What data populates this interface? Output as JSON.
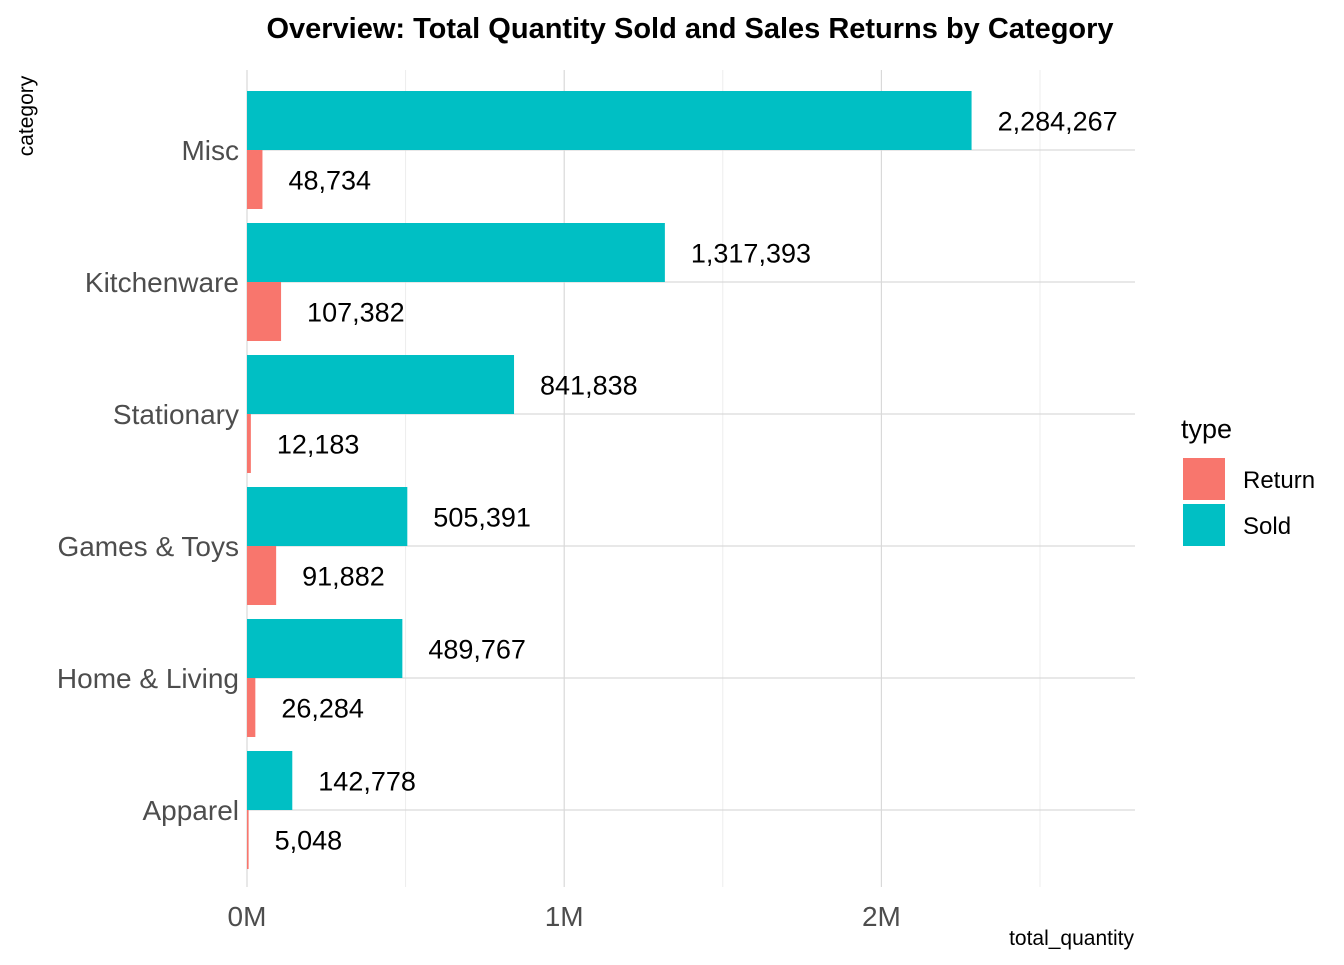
{
  "chart_data": {
    "type": "bar",
    "orientation": "horizontal",
    "title": "Overview: Total Quantity Sold and Sales Returns by Category",
    "xlabel": "total_quantity",
    "ylabel": "category",
    "categories": [
      "Misc",
      "Kitchenware",
      "Stationary",
      "Games & Toys",
      "Home & Living",
      "Apparel"
    ],
    "series": [
      {
        "name": "Sold",
        "color": "#00BFC4",
        "values": [
          2284267,
          1317393,
          841838,
          505391,
          489767,
          142778
        ],
        "labels": [
          "2,284,267",
          "1,317,393",
          "841,838",
          "505,391",
          "489,767",
          "142,778"
        ]
      },
      {
        "name": "Return",
        "color": "#F8766D",
        "values": [
          48734,
          107382,
          12183,
          91882,
          26284,
          5048
        ],
        "labels": [
          "48,734",
          "107,382",
          "12,183",
          "91,882",
          "26,284",
          "5,048"
        ]
      }
    ],
    "xlim": [
      0,
      2800000
    ],
    "xticks": [
      0,
      1000000,
      2000000
    ],
    "xtick_labels": [
      "0M",
      "1M",
      "2M"
    ],
    "grid": true,
    "legend": {
      "title": "type",
      "position": "right",
      "entries": [
        {
          "name": "Return",
          "color": "#F8766D"
        },
        {
          "name": "Sold",
          "color": "#00BFC4"
        }
      ]
    }
  }
}
